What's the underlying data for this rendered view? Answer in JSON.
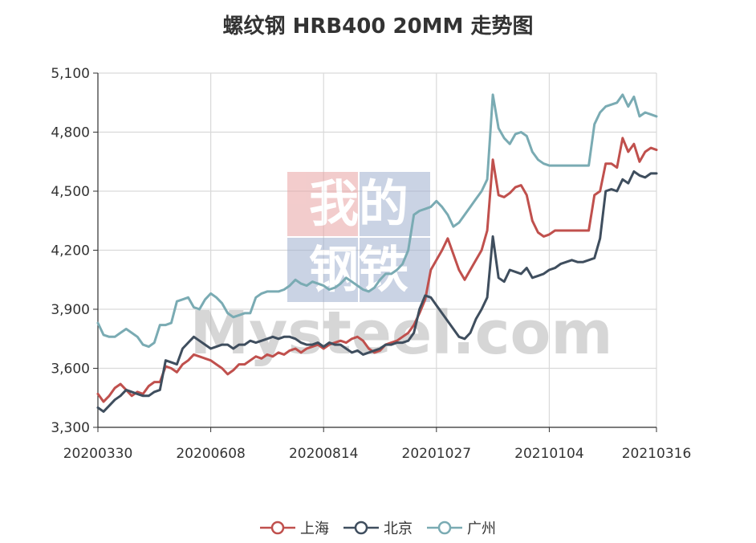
{
  "chart_data": {
    "type": "line",
    "title": "螺纹钢 HRB400 20MM 走势图",
    "watermark": {
      "line1": "我的",
      "line2": "钢铁",
      "brand": "Mysteel.com"
    },
    "ylim": [
      3300,
      5100
    ],
    "yticks": [
      "3,300",
      "3,600",
      "3,900",
      "4,200",
      "4,500",
      "4,800",
      "5,100"
    ],
    "ytick_values": [
      3300,
      3600,
      3900,
      4200,
      4500,
      4800,
      5100
    ],
    "xticks": [
      "20200330",
      "20200608",
      "20200814",
      "20201027",
      "20210104",
      "20210316"
    ],
    "n_points": 100,
    "xtick_indices": [
      0,
      20,
      40,
      60,
      80,
      99
    ],
    "legend_position": "bottom-center",
    "grid": true,
    "series": [
      {
        "name": "上海",
        "color": "#c0504d",
        "values": [
          3470,
          3430,
          3460,
          3500,
          3520,
          3490,
          3460,
          3480,
          3470,
          3510,
          3530,
          3530,
          3610,
          3600,
          3580,
          3620,
          3640,
          3670,
          3660,
          3650,
          3640,
          3620,
          3600,
          3570,
          3590,
          3620,
          3620,
          3640,
          3660,
          3650,
          3670,
          3660,
          3680,
          3670,
          3690,
          3700,
          3680,
          3700,
          3710,
          3720,
          3700,
          3720,
          3730,
          3740,
          3730,
          3750,
          3760,
          3740,
          3700,
          3680,
          3690,
          3720,
          3730,
          3740,
          3760,
          3780,
          3820,
          3880,
          3950,
          4100,
          4150,
          4200,
          4260,
          4180,
          4100,
          4050,
          4100,
          4150,
          4200,
          4300,
          4660,
          4480,
          4470,
          4490,
          4520,
          4530,
          4480,
          4350,
          4290,
          4270,
          4280,
          4300,
          4300,
          4300,
          4300,
          4300,
          4300,
          4300,
          4480,
          4500,
          4640,
          4640,
          4620,
          4770,
          4700,
          4740,
          4650,
          4700,
          4720,
          4710
        ],
        "label_color": "#c0504d"
      },
      {
        "name": "北京",
        "color": "#3f4e5e",
        "values": [
          3400,
          3380,
          3410,
          3440,
          3460,
          3490,
          3480,
          3470,
          3460,
          3460,
          3480,
          3490,
          3640,
          3630,
          3620,
          3700,
          3730,
          3760,
          3740,
          3720,
          3700,
          3710,
          3720,
          3720,
          3700,
          3720,
          3720,
          3740,
          3730,
          3740,
          3750,
          3760,
          3750,
          3760,
          3760,
          3750,
          3730,
          3720,
          3720,
          3730,
          3710,
          3730,
          3720,
          3720,
          3700,
          3680,
          3690,
          3670,
          3680,
          3690,
          3700,
          3720,
          3720,
          3730,
          3730,
          3740,
          3780,
          3900,
          3970,
          3960,
          3920,
          3880,
          3840,
          3800,
          3760,
          3750,
          3780,
          3850,
          3900,
          3960,
          4270,
          4060,
          4040,
          4100,
          4090,
          4080,
          4110,
          4060,
          4070,
          4080,
          4100,
          4110,
          4130,
          4140,
          4150,
          4140,
          4140,
          4150,
          4160,
          4260,
          4500,
          4510,
          4500,
          4560,
          4540,
          4600,
          4580,
          4570,
          4590,
          4590
        ],
        "label_color": "#3f4e5e"
      },
      {
        "name": "广州",
        "color": "#7aabb3",
        "values": [
          3830,
          3770,
          3760,
          3760,
          3780,
          3800,
          3780,
          3760,
          3720,
          3710,
          3730,
          3820,
          3820,
          3830,
          3940,
          3950,
          3960,
          3910,
          3900,
          3950,
          3980,
          3960,
          3930,
          3880,
          3860,
          3870,
          3880,
          3880,
          3960,
          3980,
          3990,
          3990,
          3990,
          4000,
          4020,
          4050,
          4030,
          4020,
          4040,
          4030,
          4020,
          4000,
          4010,
          4030,
          4060,
          4040,
          4020,
          4000,
          3990,
          4010,
          4050,
          4080,
          4080,
          4100,
          4130,
          4200,
          4380,
          4400,
          4410,
          4420,
          4450,
          4420,
          4380,
          4320,
          4340,
          4380,
          4420,
          4460,
          4500,
          4560,
          4990,
          4820,
          4770,
          4740,
          4790,
          4800,
          4780,
          4700,
          4660,
          4640,
          4630,
          4630,
          4630,
          4630,
          4630,
          4630,
          4630,
          4630,
          4840,
          4900,
          4930,
          4940,
          4950,
          4990,
          4930,
          4980,
          4880,
          4900,
          4890,
          4880
        ],
        "label_color": "#7aabb3"
      }
    ]
  }
}
